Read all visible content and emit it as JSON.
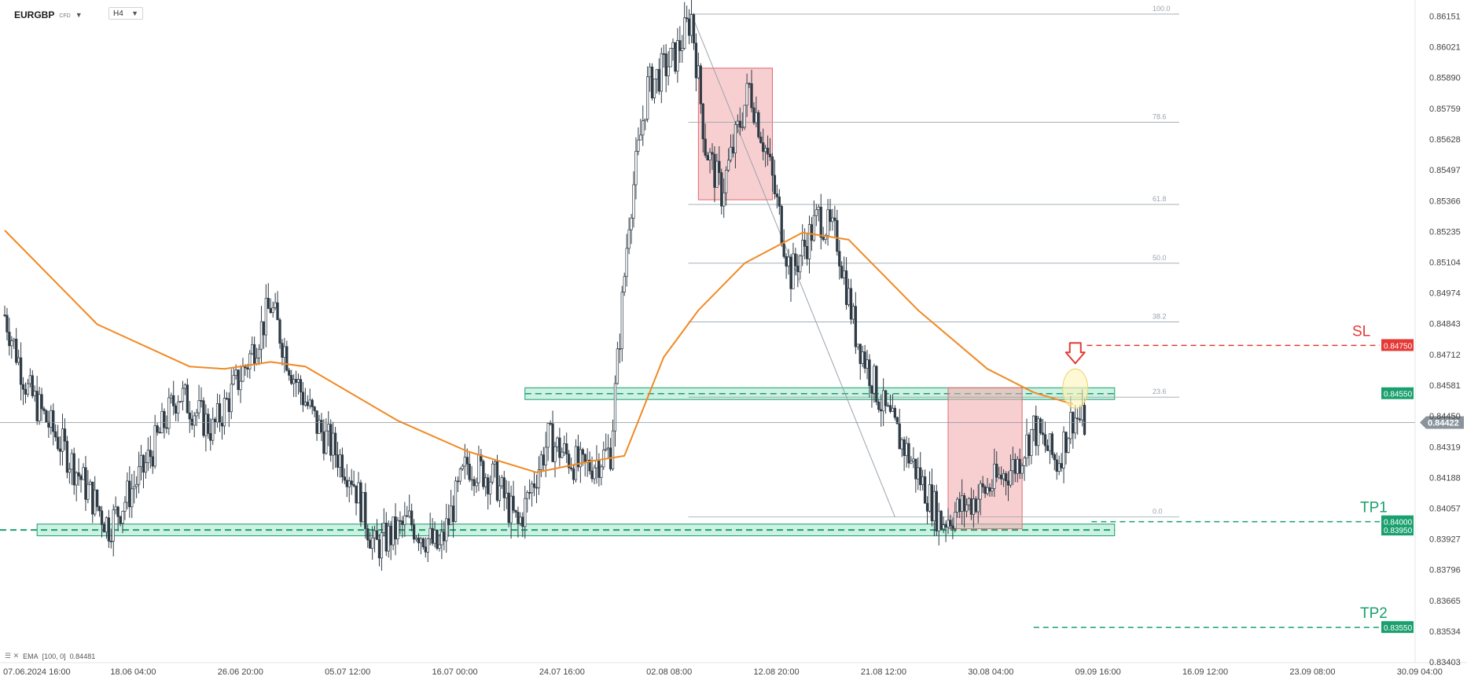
{
  "header": {
    "symbol": "EURGBP",
    "badge": "CFD",
    "timeframe": "H4"
  },
  "indicator": {
    "label": "EMA",
    "params": "[100, 0]",
    "value": "0.84481"
  },
  "colors": {
    "up": "#ffffff",
    "down": "#2f3b45",
    "ema": "#f08a24",
    "zone": "#6fd6b0",
    "box": "#f2a8ab",
    "sl": "#e53935",
    "tp": "#1aa06e",
    "grid": "#d8dde3"
  },
  "chart_data": {
    "type": "candlestick",
    "symbol": "EURGBP",
    "timeframe": "H4",
    "ylim": [
      0.834,
      0.8622
    ],
    "yticks": [
      "0.86151",
      "0.86021",
      "0.85890",
      "0.85759",
      "0.85628",
      "0.85497",
      "0.85366",
      "0.85235",
      "0.85104",
      "0.84974",
      "0.84843",
      "0.84712",
      "0.84581",
      "0.84450",
      "0.84319",
      "0.84188",
      "0.84057",
      "0.83927",
      "0.83796",
      "0.83665",
      "0.83534",
      "0.83403"
    ],
    "xticks": [
      "07.06.2024  16:00",
      "18.06  04:00",
      "26.06  20:00",
      "05.07  12:00",
      "16.07  00:00",
      "24.07  16:00",
      "02.08  08:00",
      "12.08  20:00",
      "21.08  12:00",
      "30.08  04:00",
      "09.09  16:00",
      "16.09  12:00",
      "23.09  08:00",
      "30.09  04:00"
    ],
    "current_price": "0.84422",
    "key_points": [
      {
        "bar": 0,
        "price": 0.8488
      },
      {
        "bar": 10,
        "price": 0.8456
      },
      {
        "bar": 25,
        "price": 0.8432
      },
      {
        "bar": 45,
        "price": 0.8398
      },
      {
        "bar": 60,
        "price": 0.8422
      },
      {
        "bar": 75,
        "price": 0.8455
      },
      {
        "bar": 90,
        "price": 0.8439
      },
      {
        "bar": 105,
        "price": 0.8468
      },
      {
        "bar": 115,
        "price": 0.8492
      },
      {
        "bar": 125,
        "price": 0.8462
      },
      {
        "bar": 135,
        "price": 0.8441
      },
      {
        "bar": 150,
        "price": 0.842
      },
      {
        "bar": 160,
        "price": 0.8389
      },
      {
        "bar": 175,
        "price": 0.84
      },
      {
        "bar": 188,
        "price": 0.8388
      },
      {
        "bar": 200,
        "price": 0.8425
      },
      {
        "bar": 212,
        "price": 0.8418
      },
      {
        "bar": 222,
        "price": 0.8398
      },
      {
        "bar": 235,
        "price": 0.8435
      },
      {
        "bar": 250,
        "price": 0.8422
      },
      {
        "bar": 262,
        "price": 0.843
      },
      {
        "bar": 270,
        "price": 0.853
      },
      {
        "bar": 278,
        "price": 0.8585
      },
      {
        "bar": 290,
        "price": 0.8598
      },
      {
        "bar": 297,
        "price": 0.8615
      },
      {
        "bar": 303,
        "price": 0.856
      },
      {
        "bar": 310,
        "price": 0.854
      },
      {
        "bar": 322,
        "price": 0.8585
      },
      {
        "bar": 330,
        "price": 0.8555
      },
      {
        "bar": 340,
        "price": 0.8505
      },
      {
        "bar": 352,
        "price": 0.853
      },
      {
        "bar": 360,
        "price": 0.852
      },
      {
        "bar": 368,
        "price": 0.848
      },
      {
        "bar": 380,
        "price": 0.8448
      },
      {
        "bar": 390,
        "price": 0.843
      },
      {
        "bar": 405,
        "price": 0.84
      },
      {
        "bar": 420,
        "price": 0.841
      },
      {
        "bar": 438,
        "price": 0.8425
      },
      {
        "bar": 445,
        "price": 0.844
      },
      {
        "bar": 455,
        "price": 0.8425
      },
      {
        "bar": 462,
        "price": 0.8445
      },
      {
        "bar": 467,
        "price": 0.8442
      }
    ],
    "ema_points": [
      {
        "bar": 0,
        "price": 0.8524
      },
      {
        "bar": 40,
        "price": 0.8484
      },
      {
        "bar": 80,
        "price": 0.8466
      },
      {
        "bar": 95,
        "price": 0.8465
      },
      {
        "bar": 115,
        "price": 0.8468
      },
      {
        "bar": 130,
        "price": 0.8466
      },
      {
        "bar": 170,
        "price": 0.8443
      },
      {
        "bar": 200,
        "price": 0.843
      },
      {
        "bar": 230,
        "price": 0.8421
      },
      {
        "bar": 255,
        "price": 0.8426
      },
      {
        "bar": 268,
        "price": 0.8428
      },
      {
        "bar": 285,
        "price": 0.847
      },
      {
        "bar": 300,
        "price": 0.849
      },
      {
        "bar": 320,
        "price": 0.851
      },
      {
        "bar": 345,
        "price": 0.8523
      },
      {
        "bar": 365,
        "price": 0.852
      },
      {
        "bar": 395,
        "price": 0.849
      },
      {
        "bar": 425,
        "price": 0.8465
      },
      {
        "bar": 445,
        "price": 0.8455
      },
      {
        "bar": 462,
        "price": 0.845
      }
    ],
    "fibonacci": [
      {
        "label": "100.0",
        "price": 0.8616
      },
      {
        "label": "78.6",
        "price": 0.857
      },
      {
        "label": "61.8",
        "price": 0.8535
      },
      {
        "label": "50.0",
        "price": 0.851
      },
      {
        "label": "38.2",
        "price": 0.8485
      },
      {
        "label": "23.6",
        "price": 0.8453
      },
      {
        "label": "0.0",
        "price": 0.8402
      }
    ],
    "fib_start_bar": 297,
    "fib_end_bar": 385,
    "zones": [
      {
        "name": "resistance",
        "label": "0.84550",
        "top": 0.8457,
        "bottom": 0.8452,
        "from_bar": 225,
        "to_bar": 480
      },
      {
        "name": "support",
        "label": "0.83950",
        "top": 0.8399,
        "bottom": 0.8394,
        "from_bar": 14,
        "to_bar": 480
      }
    ],
    "boxes": [
      {
        "from_bar": 300,
        "to_bar": 332,
        "top": 0.8593,
        "bottom": 0.8537
      },
      {
        "from_bar": 408,
        "to_bar": 440,
        "top": 0.8457,
        "bottom": 0.8397
      }
    ],
    "levels": [
      {
        "name": "SL",
        "label": "SL",
        "price_label": "0.84750",
        "price": 0.8475,
        "from_bar": 468,
        "kind": "sl"
      },
      {
        "name": "TP1",
        "label": "TP1",
        "price_label": "0.84000",
        "price": 0.84,
        "from_bar": 470,
        "kind": "tp"
      },
      {
        "name": "TP2",
        "label": "TP2",
        "price_label": "0.83550",
        "price": 0.8355,
        "from_bar": 445,
        "kind": "tp"
      }
    ],
    "signal": {
      "bar": 463,
      "price": 0.846
    },
    "bars_total": 612
  }
}
